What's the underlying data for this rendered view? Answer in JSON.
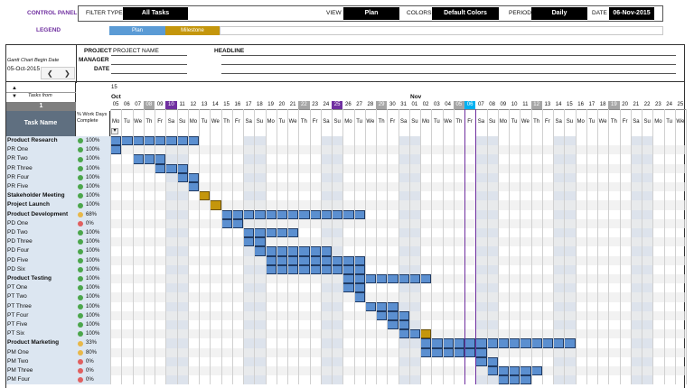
{
  "control_panel": {
    "title": "CONTROL PANEL",
    "filter_type_label": "FILTER TYPE",
    "filter_type_value": "All Tasks",
    "view_label": "VIEW",
    "view_value": "Plan",
    "colors_label": "COLORS",
    "colors_value": "Default Colors",
    "period_label": "PERIOD",
    "period_value": "Daily",
    "date_label": "DATE",
    "date_value": "06-Nov-2015"
  },
  "legend": {
    "label": "LEGEND",
    "plan": "Plan",
    "milestone": "Milestone"
  },
  "header": {
    "begin_date_label": "Gantt Chart Begin Date",
    "begin_date_value": "05-Oct-2015",
    "project_label": "PROJECT",
    "project_value": "PROJECT NAME",
    "manager_label": "MANAGER",
    "date_label": "DATE",
    "headline_label": "HEADLINE",
    "nav_prev": "❮",
    "nav_next": "❯"
  },
  "gantt": {
    "tasks_from_label": "Tasks from",
    "tasks_from_value": "1",
    "task_name_header": "Task Name",
    "pct_header": "% Work Days Complete",
    "week_number": "15",
    "month_oct": "Oct",
    "month_nov": "Nov",
    "scroll_up": "▲",
    "scroll_down": "▼",
    "filter_arrow": "▾",
    "days": [
      {
        "n": "05",
        "d": "Mo"
      },
      {
        "n": "06",
        "d": "Tu"
      },
      {
        "n": "07",
        "d": "We"
      },
      {
        "n": "08",
        "d": "Th",
        "mark": "gray"
      },
      {
        "n": "09",
        "d": "Fr"
      },
      {
        "n": "10",
        "d": "Sa",
        "mark": "purple"
      },
      {
        "n": "11",
        "d": "Su"
      },
      {
        "n": "12",
        "d": "Mo"
      },
      {
        "n": "13",
        "d": "Tu"
      },
      {
        "n": "14",
        "d": "We"
      },
      {
        "n": "15",
        "d": "Th"
      },
      {
        "n": "16",
        "d": "Fr"
      },
      {
        "n": "17",
        "d": "Sa"
      },
      {
        "n": "18",
        "d": "Su"
      },
      {
        "n": "19",
        "d": "Mo"
      },
      {
        "n": "20",
        "d": "Tu"
      },
      {
        "n": "21",
        "d": "We"
      },
      {
        "n": "22",
        "d": "Th",
        "mark": "gray"
      },
      {
        "n": "23",
        "d": "Fr"
      },
      {
        "n": "24",
        "d": "Sa"
      },
      {
        "n": "25",
        "d": "Su",
        "mark": "purple"
      },
      {
        "n": "26",
        "d": "Mo"
      },
      {
        "n": "27",
        "d": "Tu"
      },
      {
        "n": "28",
        "d": "We"
      },
      {
        "n": "29",
        "d": "Th",
        "mark": "gray"
      },
      {
        "n": "30",
        "d": "Fr"
      },
      {
        "n": "31",
        "d": "Sa"
      },
      {
        "n": "01",
        "d": "Su"
      },
      {
        "n": "02",
        "d": "Mo"
      },
      {
        "n": "03",
        "d": "Tu"
      },
      {
        "n": "04",
        "d": "We"
      },
      {
        "n": "05",
        "d": "Th",
        "mark": "gray"
      },
      {
        "n": "06",
        "d": "Fr",
        "mark": "today"
      },
      {
        "n": "07",
        "d": "Sa"
      },
      {
        "n": "08",
        "d": "Su"
      },
      {
        "n": "09",
        "d": "Mo"
      },
      {
        "n": "10",
        "d": "Tu"
      },
      {
        "n": "11",
        "d": "We"
      },
      {
        "n": "12",
        "d": "Th",
        "mark": "gray"
      },
      {
        "n": "13",
        "d": "Fr"
      },
      {
        "n": "14",
        "d": "Sa"
      },
      {
        "n": "15",
        "d": "Su"
      },
      {
        "n": "16",
        "d": "Mo"
      },
      {
        "n": "17",
        "d": "Tu"
      },
      {
        "n": "18",
        "d": "We"
      },
      {
        "n": "19",
        "d": "Th",
        "mark": "gray"
      },
      {
        "n": "20",
        "d": "Fr"
      },
      {
        "n": "21",
        "d": "Sa"
      },
      {
        "n": "22",
        "d": "Su"
      },
      {
        "n": "23",
        "d": "Mo"
      },
      {
        "n": "24",
        "d": "Tu"
      },
      {
        "n": "25",
        "d": "We"
      }
    ],
    "tasks": [
      {
        "name": "Product Research",
        "bold": true,
        "pct": "100%",
        "status": "green",
        "start": 0,
        "len": 8,
        "type": "plan"
      },
      {
        "name": "PR One",
        "bold": false,
        "pct": "100%",
        "status": "green",
        "start": 0,
        "len": 1,
        "type": "plan"
      },
      {
        "name": "PR Two",
        "bold": false,
        "pct": "100%",
        "status": "green",
        "start": 2,
        "len": 3,
        "type": "plan"
      },
      {
        "name": "PR Three",
        "bold": false,
        "pct": "100%",
        "status": "green",
        "start": 4,
        "len": 3,
        "type": "plan"
      },
      {
        "name": "PR Four",
        "bold": false,
        "pct": "100%",
        "status": "green",
        "start": 6,
        "len": 2,
        "type": "plan"
      },
      {
        "name": "PR Five",
        "bold": false,
        "pct": "100%",
        "status": "green",
        "start": 7,
        "len": 1,
        "type": "plan"
      },
      {
        "name": "Stakeholder Meeting",
        "bold": true,
        "pct": "100%",
        "status": "green",
        "start": 8,
        "len": 1,
        "type": "milestone"
      },
      {
        "name": "Project Launch",
        "bold": true,
        "pct": "100%",
        "status": "green",
        "start": 9,
        "len": 1,
        "type": "milestone"
      },
      {
        "name": "Product Development",
        "bold": true,
        "pct": "68%",
        "status": "yellow",
        "start": 10,
        "len": 13,
        "type": "plan"
      },
      {
        "name": "PD One",
        "bold": false,
        "pct": "0%",
        "status": "red",
        "start": 10,
        "len": 2,
        "type": "plan"
      },
      {
        "name": "PD Two",
        "bold": false,
        "pct": "100%",
        "status": "green",
        "start": 12,
        "len": 5,
        "type": "plan"
      },
      {
        "name": "PD Three",
        "bold": false,
        "pct": "100%",
        "status": "green",
        "start": 12,
        "len": 2,
        "type": "plan"
      },
      {
        "name": "PD Four",
        "bold": false,
        "pct": "100%",
        "status": "green",
        "start": 13,
        "len": 7,
        "type": "plan"
      },
      {
        "name": "PD Five",
        "bold": false,
        "pct": "100%",
        "status": "green",
        "start": 14,
        "len": 9,
        "type": "plan"
      },
      {
        "name": "PD Six",
        "bold": false,
        "pct": "100%",
        "status": "green",
        "start": 14,
        "len": 9,
        "type": "plan"
      },
      {
        "name": "Product Testing",
        "bold": true,
        "pct": "100%",
        "status": "green",
        "start": 21,
        "len": 8,
        "type": "plan"
      },
      {
        "name": "PT One",
        "bold": false,
        "pct": "100%",
        "status": "green",
        "start": 21,
        "len": 2,
        "type": "plan"
      },
      {
        "name": "PT Two",
        "bold": false,
        "pct": "100%",
        "status": "green",
        "start": 22,
        "len": 1,
        "type": "plan"
      },
      {
        "name": "PT Three",
        "bold": false,
        "pct": "100%",
        "status": "green",
        "start": 23,
        "len": 3,
        "type": "plan"
      },
      {
        "name": "PT Four",
        "bold": false,
        "pct": "100%",
        "status": "green",
        "start": 24,
        "len": 3,
        "type": "plan"
      },
      {
        "name": "PT Five",
        "bold": false,
        "pct": "100%",
        "status": "green",
        "start": 25,
        "len": 2,
        "type": "plan"
      },
      {
        "name": "PT Six",
        "bold": false,
        "pct": "100%",
        "status": "green",
        "start": 26,
        "len": 2,
        "type": "plan"
      },
      {
        "name": "Product Marketing",
        "bold": true,
        "pct": "33%",
        "status": "yellow",
        "start": 28,
        "len": 14,
        "type": "plan"
      },
      {
        "name": "PM One",
        "bold": false,
        "pct": "80%",
        "status": "yellow",
        "start": 28,
        "len": 6,
        "type": "plan"
      },
      {
        "name": "PM Two",
        "bold": false,
        "pct": "0%",
        "status": "red",
        "start": 33,
        "len": 2,
        "type": "plan"
      },
      {
        "name": "PM Three",
        "bold": false,
        "pct": "0%",
        "status": "red",
        "start": 34,
        "len": 5,
        "type": "plan"
      },
      {
        "name": "PM Four",
        "bold": false,
        "pct": "0%",
        "status": "red",
        "start": 35,
        "len": 3,
        "type": "plan"
      }
    ],
    "row27_extra": {
      "start": 27,
      "len": 1
    }
  },
  "colors": {
    "plan": "#5b8fd0",
    "milestone": "#c4960c",
    "legend_plan": "#5b9bd5",
    "status_green": "#4ca64c",
    "status_yellow": "#e8b84a",
    "status_red": "#e06060",
    "title_purple": "#7030a0",
    "today": "#00b0f0",
    "row_left": "#dce6f1",
    "row_stripe": "#ececec",
    "weekend_col": "#dde3ec",
    "task_header": "#5f6f80"
  }
}
